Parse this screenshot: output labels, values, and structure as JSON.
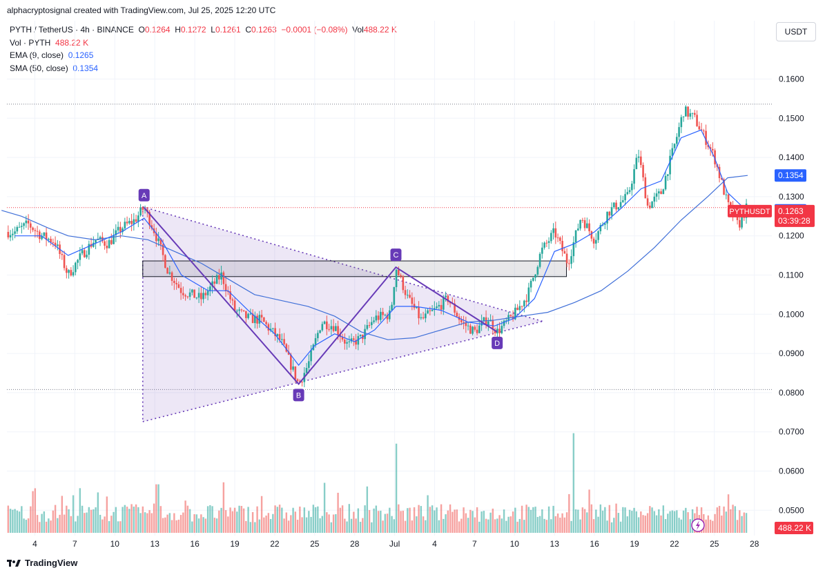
{
  "caption": "alphacryptosignal created with TradingView.com, Jul 25, 2025 12:20 UTC",
  "legend": {
    "symbol": "PYTH / TetherUS · 4h · BINANCE",
    "o_label": "O",
    "o": "0.1264",
    "h_label": "H",
    "h": "0.1272",
    "l_label": "L",
    "l": "0.1261",
    "c_label": "C",
    "c": "0.1263",
    "change": "−0.0001 (−0.08%)",
    "vol_label": "Vol",
    "vol": "488.22 K",
    "vol_row_label": "Vol · PYTH",
    "vol_row_value": "488.22 K",
    "ema_label": "EMA (9, close)",
    "ema_value": "0.1265",
    "sma_label": "SMA (50, close)",
    "sma_value": "0.1354"
  },
  "currency": "USDT",
  "footer": {
    "brand": "TradingView"
  },
  "colors": {
    "up": "#26a69a",
    "down": "#ef5350",
    "ema": "#2962ff",
    "sma": "#3f6fd8",
    "pattern": "#673ab7",
    "bg": "#ffffff"
  },
  "chart_data": {
    "type": "candlestick",
    "y_axis": {
      "range": [
        0.0435,
        0.1755
      ],
      "ticks": [
        "0.1600",
        "0.1500",
        "0.1400",
        "0.1300",
        "0.1200",
        "0.1100",
        "0.1000",
        "0.0900",
        "0.0800",
        "0.0700",
        "0.0600",
        "0.0500"
      ],
      "position": "right"
    },
    "x_axis": {
      "ticks": [
        "4",
        "7",
        "10",
        "13",
        "16",
        "19",
        "22",
        "25",
        "28",
        "Jul",
        "4",
        "7",
        "10",
        "13",
        "16",
        "19",
        "22",
        "25",
        "28"
      ]
    },
    "price_badges": [
      {
        "label": "0.1354",
        "price": 0.1354,
        "color": "#2962ff"
      },
      {
        "label": "0.1265",
        "price": 0.1265,
        "color": "#2962ff"
      },
      {
        "label": "0.1263",
        "price": 0.1263,
        "color": "#f23645",
        "countdown": "03:39:28",
        "name": "PYTHUSDT"
      }
    ],
    "volume_badge": "488.22 K",
    "horizontal_levels": [
      0.1536,
      0.1272,
      0.0808
    ],
    "zone": {
      "top": 0.1136,
      "bottom": 0.1096,
      "from_day": 10.6,
      "to_day": 42.4
    },
    "pattern_points": [
      {
        "label": "A",
        "day": 10.7,
        "price": 0.1272
      },
      {
        "label": "B",
        "day": 22.3,
        "price": 0.0822
      },
      {
        "label": "C",
        "day": 29.6,
        "price": 0.112
      },
      {
        "label": "D",
        "day": 37.2,
        "price": 0.0955
      }
    ],
    "triangle": [
      {
        "day": 10.6,
        "price": 0.1274
      },
      {
        "day": 10.6,
        "price": 0.0726
      },
      {
        "day": 40.6,
        "price": 0.0982
      }
    ],
    "price_path": [
      [
        1.0,
        0.121
      ],
      [
        2.0,
        0.123
      ],
      [
        3.0,
        0.12
      ],
      [
        4.0,
        0.1185
      ],
      [
        5.0,
        0.11
      ],
      [
        6.0,
        0.115
      ],
      [
        7.0,
        0.119
      ],
      [
        8.0,
        0.118
      ],
      [
        9.0,
        0.122
      ],
      [
        10.0,
        0.124
      ],
      [
        10.7,
        0.1272
      ],
      [
        11.5,
        0.121
      ],
      [
        12.5,
        0.111
      ],
      [
        13.5,
        0.106
      ],
      [
        15.0,
        0.104
      ],
      [
        16.5,
        0.11
      ],
      [
        17.5,
        0.101
      ],
      [
        18.5,
        0.099
      ],
      [
        19.5,
        0.0985
      ],
      [
        21.0,
        0.093
      ],
      [
        22.3,
        0.0822
      ],
      [
        23.0,
        0.087
      ],
      [
        24.0,
        0.098
      ],
      [
        25.0,
        0.097
      ],
      [
        26.0,
        0.092
      ],
      [
        27.0,
        0.094
      ],
      [
        28.0,
        0.099
      ],
      [
        29.2,
        0.1
      ],
      [
        29.6,
        0.112
      ],
      [
        30.5,
        0.104
      ],
      [
        31.5,
        0.0985
      ],
      [
        32.5,
        0.101
      ],
      [
        33.5,
        0.104
      ],
      [
        34.5,
        0.098
      ],
      [
        35.5,
        0.0955
      ],
      [
        36.5,
        0.099
      ],
      [
        37.2,
        0.0955
      ],
      [
        38.5,
        0.1
      ],
      [
        39.5,
        0.105
      ],
      [
        40.5,
        0.116
      ],
      [
        41.5,
        0.121
      ],
      [
        42.5,
        0.113
      ],
      [
        43.5,
        0.125
      ],
      [
        44.5,
        0.119
      ],
      [
        45.5,
        0.126
      ],
      [
        47.0,
        0.13
      ],
      [
        47.8,
        0.141
      ],
      [
        48.5,
        0.1275
      ],
      [
        49.5,
        0.131
      ],
      [
        50.5,
        0.143
      ],
      [
        51.2,
        0.152
      ],
      [
        52.0,
        0.15
      ],
      [
        52.8,
        0.145
      ],
      [
        53.5,
        0.14
      ],
      [
        54.5,
        0.128
      ],
      [
        55.3,
        0.1225
      ],
      [
        55.9,
        0.127
      ]
    ],
    "ema": [
      [
        1.0,
        0.12
      ],
      [
        3.0,
        0.12
      ],
      [
        5.0,
        0.115
      ],
      [
        7.0,
        0.118
      ],
      [
        9.0,
        0.121
      ],
      [
        10.7,
        0.1245
      ],
      [
        12.0,
        0.119
      ],
      [
        13.5,
        0.11
      ],
      [
        15.5,
        0.106
      ],
      [
        17.0,
        0.106
      ],
      [
        18.5,
        0.101
      ],
      [
        20.5,
        0.095
      ],
      [
        22.3,
        0.087
      ],
      [
        23.5,
        0.092
      ],
      [
        25.0,
        0.095
      ],
      [
        26.5,
        0.093
      ],
      [
        28.0,
        0.096
      ],
      [
        29.6,
        0.102
      ],
      [
        31.0,
        0.102
      ],
      [
        33.0,
        0.101
      ],
      [
        35.0,
        0.098
      ],
      [
        37.0,
        0.097
      ],
      [
        38.5,
        0.099
      ],
      [
        40.0,
        0.104
      ],
      [
        41.5,
        0.116
      ],
      [
        43.0,
        0.118
      ],
      [
        44.5,
        0.121
      ],
      [
        46.5,
        0.127
      ],
      [
        48.0,
        0.132
      ],
      [
        49.5,
        0.134
      ],
      [
        51.0,
        0.145
      ],
      [
        52.5,
        0.147
      ],
      [
        53.5,
        0.14
      ],
      [
        54.5,
        0.131
      ],
      [
        55.9,
        0.1265
      ]
    ],
    "sma": [
      [
        0.0,
        0.1265
      ],
      [
        1.5,
        0.125
      ],
      [
        3.5,
        0.122
      ],
      [
        5.0,
        0.12
      ],
      [
        7.0,
        0.119
      ],
      [
        9.0,
        0.12
      ],
      [
        11.0,
        0.119
      ],
      [
        13.0,
        0.116
      ],
      [
        15.0,
        0.113
      ],
      [
        17.0,
        0.109
      ],
      [
        19.0,
        0.105
      ],
      [
        21.0,
        0.1035
      ],
      [
        23.0,
        0.102
      ],
      [
        25.0,
        0.0995
      ],
      [
        27.0,
        0.0955
      ],
      [
        29.0,
        0.0935
      ],
      [
        31.0,
        0.094
      ],
      [
        33.0,
        0.096
      ],
      [
        35.0,
        0.098
      ],
      [
        37.0,
        0.0985
      ],
      [
        39.0,
        0.0995
      ],
      [
        41.0,
        0.1005
      ],
      [
        43.0,
        0.103
      ],
      [
        45.0,
        0.106
      ],
      [
        47.0,
        0.111
      ],
      [
        49.0,
        0.117
      ],
      [
        51.0,
        0.124
      ],
      [
        53.0,
        0.13
      ],
      [
        54.5,
        0.1348
      ],
      [
        56.0,
        0.1354
      ]
    ],
    "volume_spikes": [
      {
        "day": 29.6,
        "rel": 0.68
      },
      {
        "day": 42.9,
        "rel": 0.76
      },
      {
        "day": 11.7,
        "rel": 0.37
      }
    ]
  }
}
